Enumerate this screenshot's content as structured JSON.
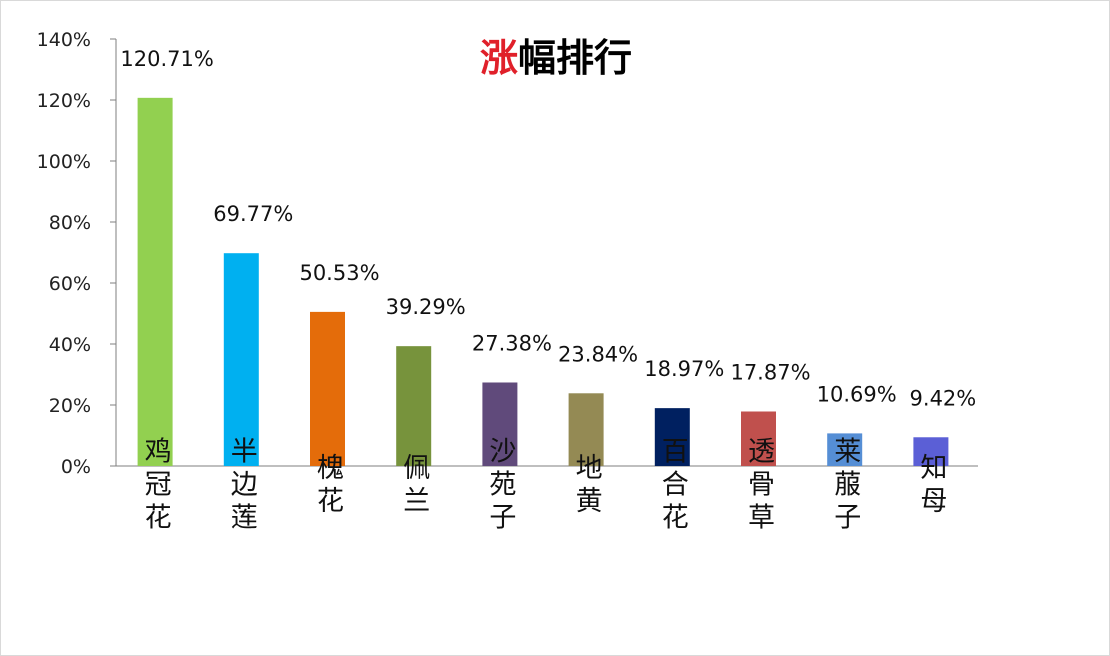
{
  "chart_data": {
    "type": "bar",
    "title_highlight": "涨",
    "title_rest": "幅排行",
    "title_colors": {
      "highlight": "#e0202a",
      "rest": "#000000"
    },
    "categories": [
      "鸡冠花",
      "半边莲",
      "槐花",
      "佩兰",
      "沙苑子",
      "地黄",
      "百合花",
      "透骨草",
      "莱菔子",
      "知母"
    ],
    "values": [
      120.71,
      69.77,
      50.53,
      39.29,
      27.38,
      23.84,
      18.97,
      17.87,
      10.69,
      9.42
    ],
    "data_labels": [
      "120.71%",
      "69.77%",
      "50.53%",
      "39.29%",
      "27.38%",
      "23.84%",
      "18.97%",
      "17.87%",
      "10.69%",
      "9.42%"
    ],
    "colors": [
      "#92d050",
      "#00b0f0",
      "#e46c0a",
      "#77933c",
      "#604a7b",
      "#948a54",
      "#002060",
      "#c0504d",
      "#558ed5",
      "#5b5fd6"
    ],
    "yticks": [
      "0%",
      "20%",
      "40%",
      "60%",
      "80%",
      "100%",
      "120%",
      "140%"
    ],
    "ylim": [
      0,
      140
    ],
    "xlabel": "",
    "ylabel": "",
    "grid": false,
    "legend": "none"
  }
}
